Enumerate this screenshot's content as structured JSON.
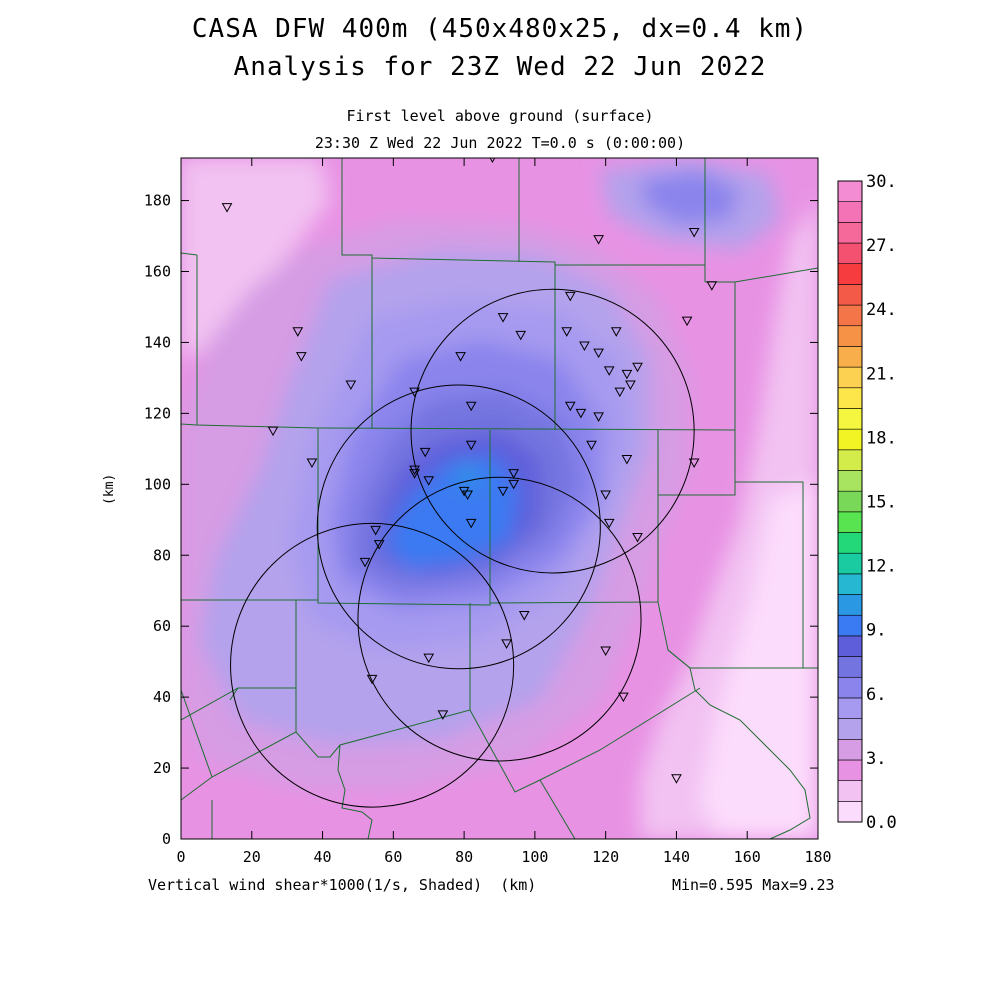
{
  "title": {
    "line1": "CASA DFW 400m (450x480x25, dx=0.4 km)",
    "line2": "Analysis for 23Z Wed 22 Jun 2022"
  },
  "subtitle": {
    "line1": "First level above ground (surface)",
    "line2": "23:30 Z Wed 22 Jun 2022   T=0.0 s (0:00:00)"
  },
  "axes": {
    "xlabel": "(km)",
    "ylabel": "(km)",
    "xlim": [
      0,
      180
    ],
    "ylim": [
      0,
      192
    ],
    "x_ticks": [
      "0",
      "20",
      "40",
      "60",
      "80",
      "100",
      "120",
      "140",
      "160",
      "180"
    ],
    "y_ticks": [
      "0",
      "20",
      "40",
      "60",
      "80",
      "100",
      "120",
      "140",
      "160",
      "180"
    ]
  },
  "footer": {
    "field": "Vertical wind shear*1000(1/s, Shaded)",
    "range": "Min=0.595 Max=9.23"
  },
  "colorbar": {
    "labels": [
      "0.0",
      "3.",
      "6.",
      "9.",
      "12.",
      "15.",
      "18.",
      "21.",
      "24.",
      "27.",
      "30."
    ],
    "colors": [
      "#fcdcfc",
      "#f2c2f2",
      "#e892e4",
      "#d69ce4",
      "#b4a2ec",
      "#a69af0",
      "#8a84ec",
      "#7474e0",
      "#5e5eda",
      "#3a7af2",
      "#2a98e2",
      "#26b8d2",
      "#1acaa0",
      "#22d878",
      "#58e450",
      "#7ad858",
      "#a8e460",
      "#d4ec4a",
      "#f2f424",
      "#f4f640",
      "#fce64a",
      "#fcd050",
      "#f8ae4a",
      "#f69246",
      "#f47648",
      "#f45a48",
      "#f63c3e",
      "#f45070",
      "#f4689a",
      "#f472b6",
      "#f48cd4"
    ]
  },
  "stations": [
    [
      13,
      178
    ],
    [
      88,
      192
    ],
    [
      118,
      169
    ],
    [
      145,
      171
    ],
    [
      150,
      156
    ],
    [
      143,
      146
    ],
    [
      110,
      153
    ],
    [
      33,
      143
    ],
    [
      34,
      136
    ],
    [
      48,
      128
    ],
    [
      66,
      126
    ],
    [
      79,
      136
    ],
    [
      91,
      147
    ],
    [
      96,
      142
    ],
    [
      109,
      143
    ],
    [
      114,
      139
    ],
    [
      118,
      137
    ],
    [
      123,
      143
    ],
    [
      121,
      132
    ],
    [
      126,
      131
    ],
    [
      127,
      128
    ],
    [
      129,
      133
    ],
    [
      124,
      126
    ],
    [
      82,
      122
    ],
    [
      110,
      122
    ],
    [
      113,
      120
    ],
    [
      118,
      119
    ],
    [
      26,
      115
    ],
    [
      37,
      106
    ],
    [
      69,
      109
    ],
    [
      82,
      111
    ],
    [
      116,
      111
    ],
    [
      126,
      107
    ],
    [
      145,
      106
    ],
    [
      66,
      104
    ],
    [
      66,
      103
    ],
    [
      70,
      101
    ],
    [
      94,
      103
    ],
    [
      94,
      100
    ],
    [
      91,
      98
    ],
    [
      80,
      98
    ],
    [
      81,
      97
    ],
    [
      82,
      89
    ],
    [
      120,
      97
    ],
    [
      121,
      89
    ],
    [
      129,
      85
    ],
    [
      55,
      87
    ],
    [
      56,
      83
    ],
    [
      52,
      78
    ],
    [
      97,
      63
    ],
    [
      92,
      55
    ],
    [
      120,
      53
    ],
    [
      70,
      51
    ],
    [
      54,
      45
    ],
    [
      125,
      40
    ],
    [
      74,
      35
    ],
    [
      140,
      17
    ]
  ],
  "radar_rings": [
    [
      78.5,
      88,
      40
    ],
    [
      105,
      115,
      40
    ],
    [
      90,
      62,
      40
    ],
    [
      54,
      49,
      40
    ]
  ]
}
